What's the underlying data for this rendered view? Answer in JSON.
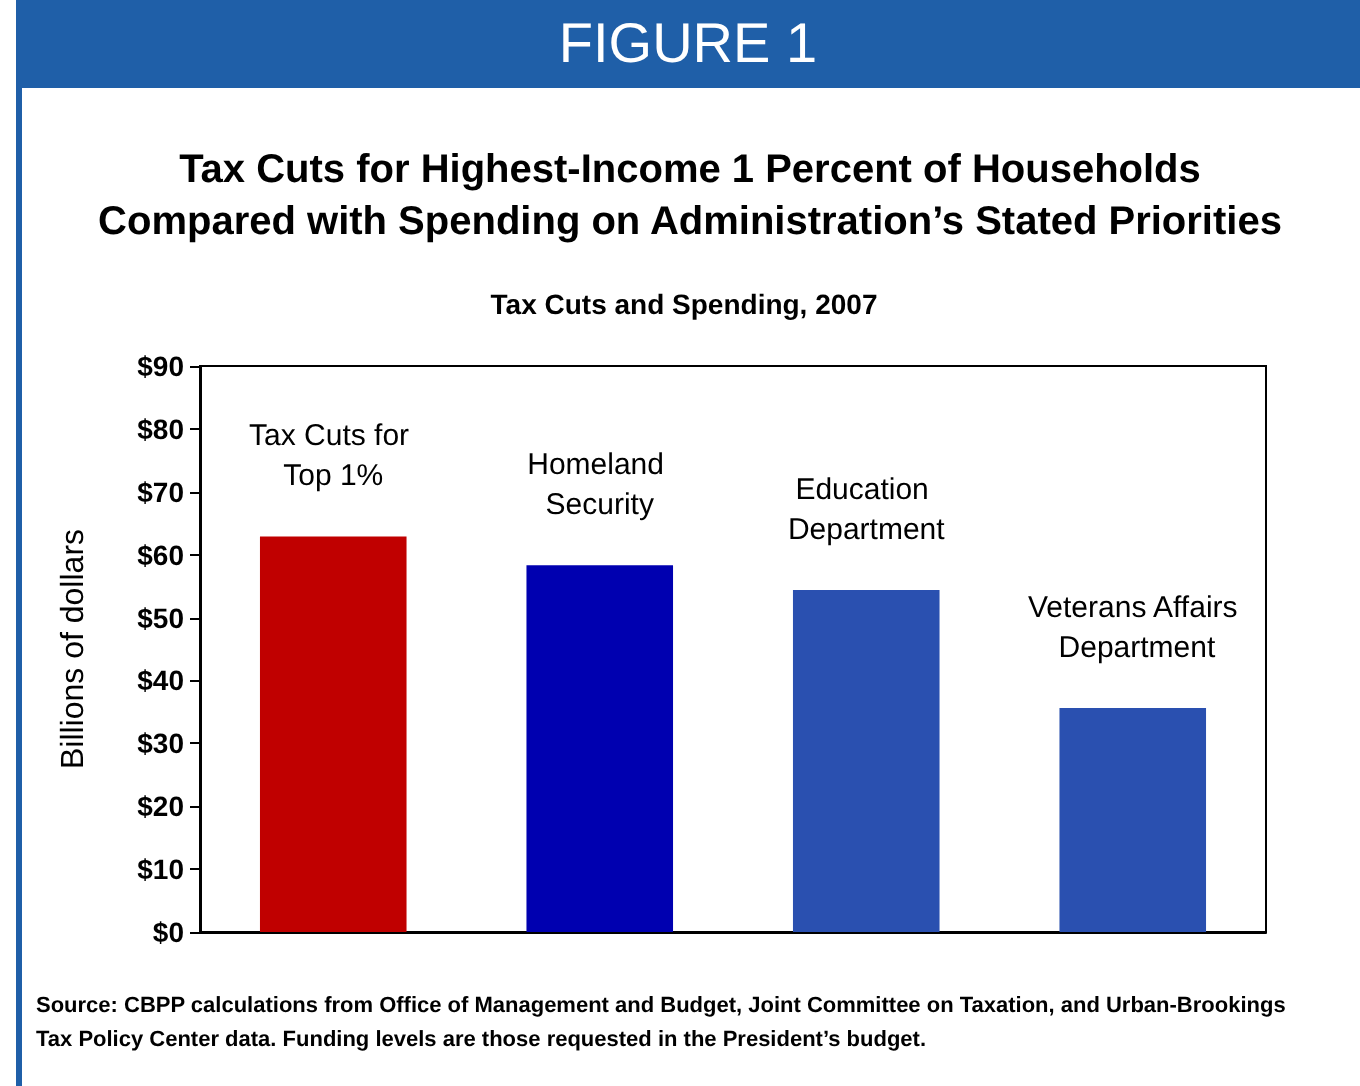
{
  "chart_data": {
    "type": "bar",
    "title": "Tax Cuts for Highest-Income 1 Percent of Households Compared with Spending on Administration’s Stated Priorities",
    "subtitle": "Tax Cuts and Spending, 2007",
    "ylabel": "Billions of dollars",
    "categories": [
      "Tax Cuts for Top 1%",
      "Homeland Security",
      "Education Department",
      "Veterans Affairs Department"
    ],
    "values": [
      62.9,
      58.3,
      54.4,
      35.6
    ],
    "colors": [
      "#c00000",
      "#0000b0",
      "#2a50b0",
      "#2a50b0"
    ],
    "ylim": [
      0,
      90
    ],
    "yticks": [
      {
        "value": 0,
        "label": "$0"
      },
      {
        "value": 10,
        "label": "$10"
      },
      {
        "value": 20,
        "label": "$20"
      },
      {
        "value": 30,
        "label": "$30"
      },
      {
        "value": 40,
        "label": "$40"
      },
      {
        "value": 50,
        "label": "$50"
      },
      {
        "value": 60,
        "label": "$60"
      },
      {
        "value": 70,
        "label": "$70"
      },
      {
        "value": 80,
        "label": "$80"
      },
      {
        "value": 90,
        "label": "$90"
      }
    ],
    "grid": false,
    "annotations": [
      "FIGURE 1",
      "Source: CBPP calculations from Office of Management and Budget, Joint Committee on Taxation, and Urban-Brookings Tax Policy Center data.  Funding levels are those requested in the President’s budget."
    ]
  }
}
